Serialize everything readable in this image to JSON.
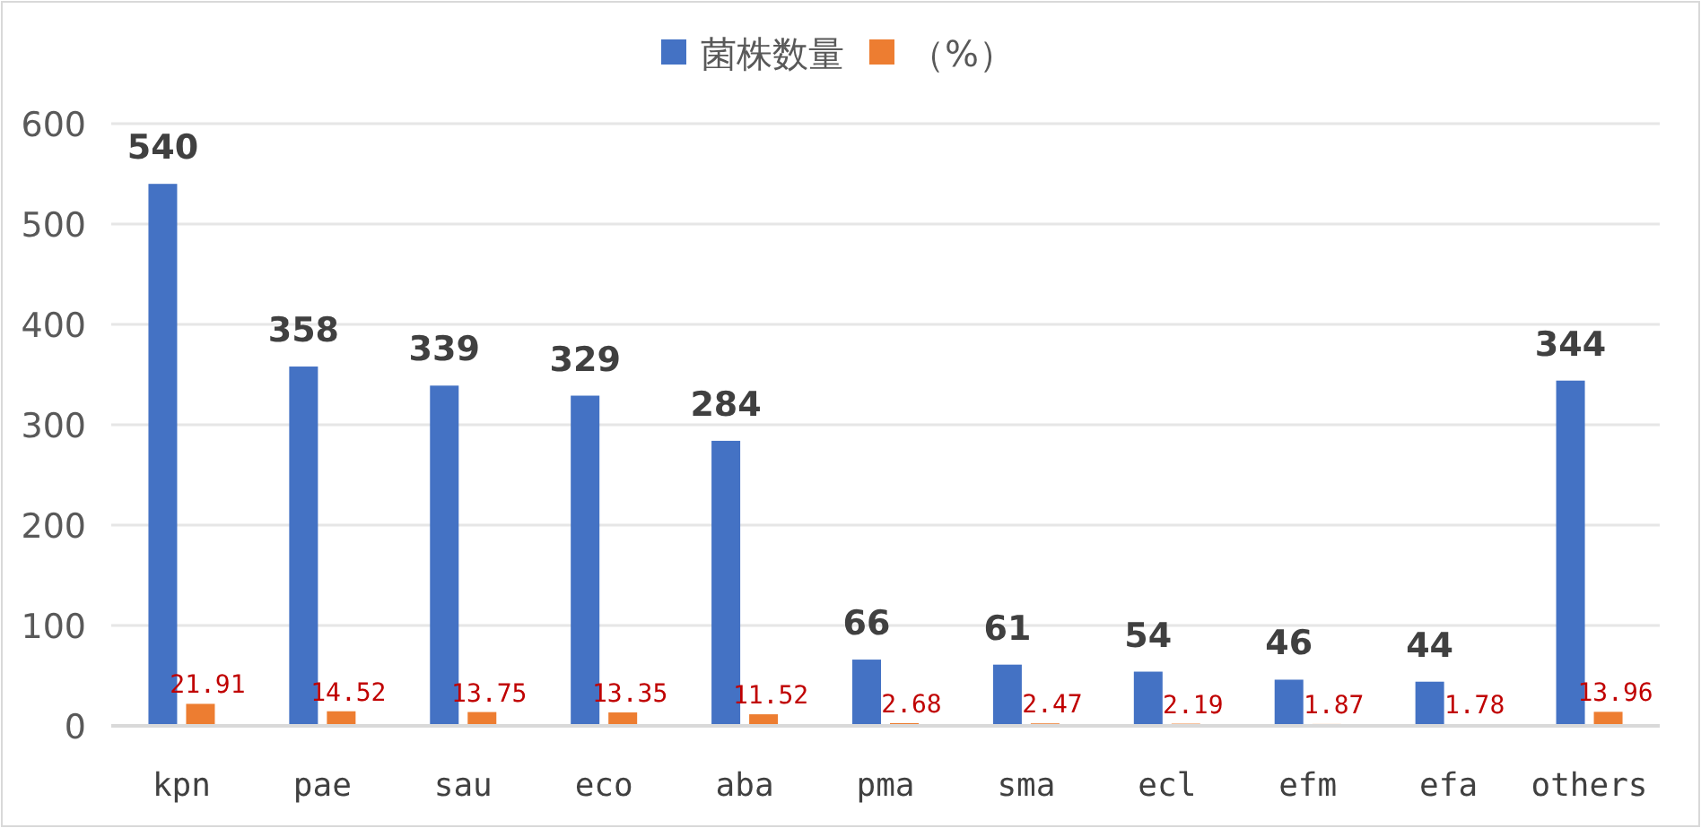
{
  "chart_data": {
    "type": "bar",
    "categories": [
      "kpn",
      "pae",
      "sau",
      "eco",
      "aba",
      "pma",
      "sma",
      "ecl",
      "efm",
      "efa",
      "others"
    ],
    "series": [
      {
        "name": "菌株数量",
        "color": "#4472c4",
        "values": [
          540,
          358,
          339,
          329,
          284,
          66,
          61,
          54,
          46,
          44,
          344
        ]
      },
      {
        "name": "（%）",
        "color": "#ed7d31",
        "values": [
          21.91,
          14.52,
          13.75,
          13.35,
          11.52,
          2.68,
          2.47,
          2.19,
          1.87,
          1.78,
          13.96
        ]
      }
    ],
    "ylim": [
      0,
      600
    ],
    "yticks": [
      0,
      100,
      200,
      300,
      400,
      500,
      600
    ],
    "grid": "y",
    "legend": "top",
    "data_labels": true
  }
}
